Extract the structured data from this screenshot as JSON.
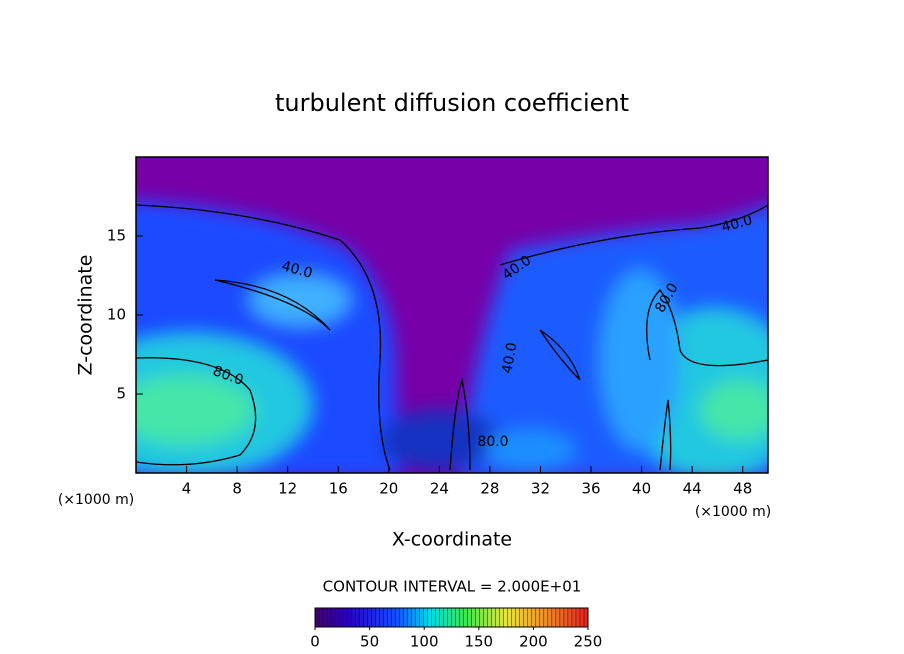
{
  "chart_data": {
    "type": "contour",
    "title": "turbulent diffusion coefficient",
    "x_label": "X-coordinate",
    "y_label": "Z-coordinate",
    "x_unit_label": "(×1000 m)",
    "y_unit_label": "(×1000 m)",
    "xlim": [
      0,
      50
    ],
    "xticks": [
      4,
      8,
      12,
      16,
      20,
      24,
      28,
      32,
      36,
      40,
      44,
      48
    ],
    "ylim": [
      0,
      20
    ],
    "yticks": [
      5,
      10,
      15
    ],
    "contour_labels": [
      "40.0",
      "80.0",
      "40.0",
      "40.0",
      "80.0",
      "40.0",
      "80.0"
    ],
    "contour_note": "CONTOUR INTERVAL = 2.000E+01",
    "colorbar": {
      "lim": [
        0,
        250
      ],
      "ticks": [
        0,
        50,
        100,
        150,
        200,
        250
      ]
    }
  }
}
